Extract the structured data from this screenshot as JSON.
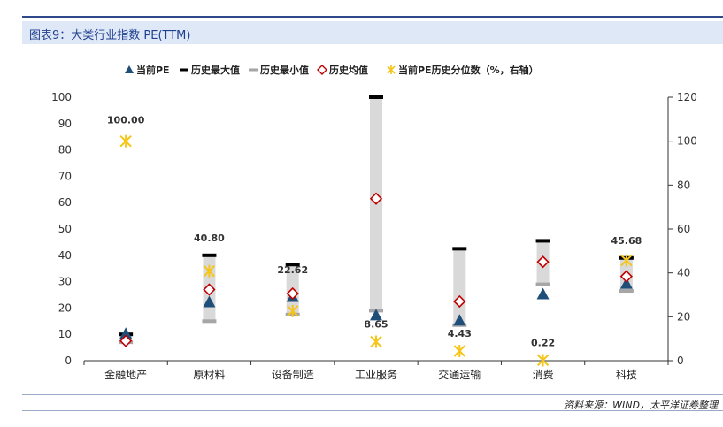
{
  "header": {
    "title": "图表9：大类行业指数 PE(TTM)"
  },
  "source": "资料来源：WIND，太平洋证券整理",
  "colors": {
    "current_pe": "#1f4e79",
    "hist_max": "#000000",
    "hist_min": "#a6a6a6",
    "hist_mean": "#c00000",
    "percentile": "#f5c518",
    "range_bar": "#d9d9d9"
  },
  "chart_data": {
    "type": "bar",
    "categories": [
      "金融地产",
      "原材料",
      "设备制造",
      "工业服务",
      "交通运输",
      "消费",
      "科技"
    ],
    "ylim_left": [
      0,
      100
    ],
    "ylim_right": [
      0,
      120
    ],
    "left_ticks": [
      "0",
      "10",
      "20",
      "30",
      "40",
      "50",
      "60",
      "70",
      "80",
      "90",
      "100"
    ],
    "right_ticks": [
      "0",
      "20",
      "40",
      "60",
      "80",
      "100",
      "120"
    ],
    "legend": [
      "当前PE",
      "历史最大值",
      "历史最小值",
      "历史均值",
      "当前PE历史分位数（%，右轴）"
    ],
    "series": [
      {
        "name": "当前PE",
        "values": [
          10,
          22,
          24,
          17,
          15,
          25,
          29
        ]
      },
      {
        "name": "历史最大值",
        "values": [
          10,
          40,
          36.5,
          100,
          42.5,
          45.5,
          39
        ]
      },
      {
        "name": "历史最小值",
        "values": [
          7,
          15,
          17.5,
          19,
          13.5,
          29,
          26.5
        ]
      },
      {
        "name": "历史均值",
        "values": [
          7.5,
          27,
          25.5,
          61.5,
          22.5,
          37.5,
          32
        ]
      },
      {
        "name": "当前PE历史分位数（%，右轴）",
        "values": [
          100,
          40.8,
          22.62,
          8.65,
          4.43,
          0.22,
          45.68
        ]
      }
    ],
    "percentile_labels": [
      "100.00",
      "40.80",
      "22.62",
      "8.65",
      "4.43",
      "0.22",
      "45.68"
    ]
  }
}
